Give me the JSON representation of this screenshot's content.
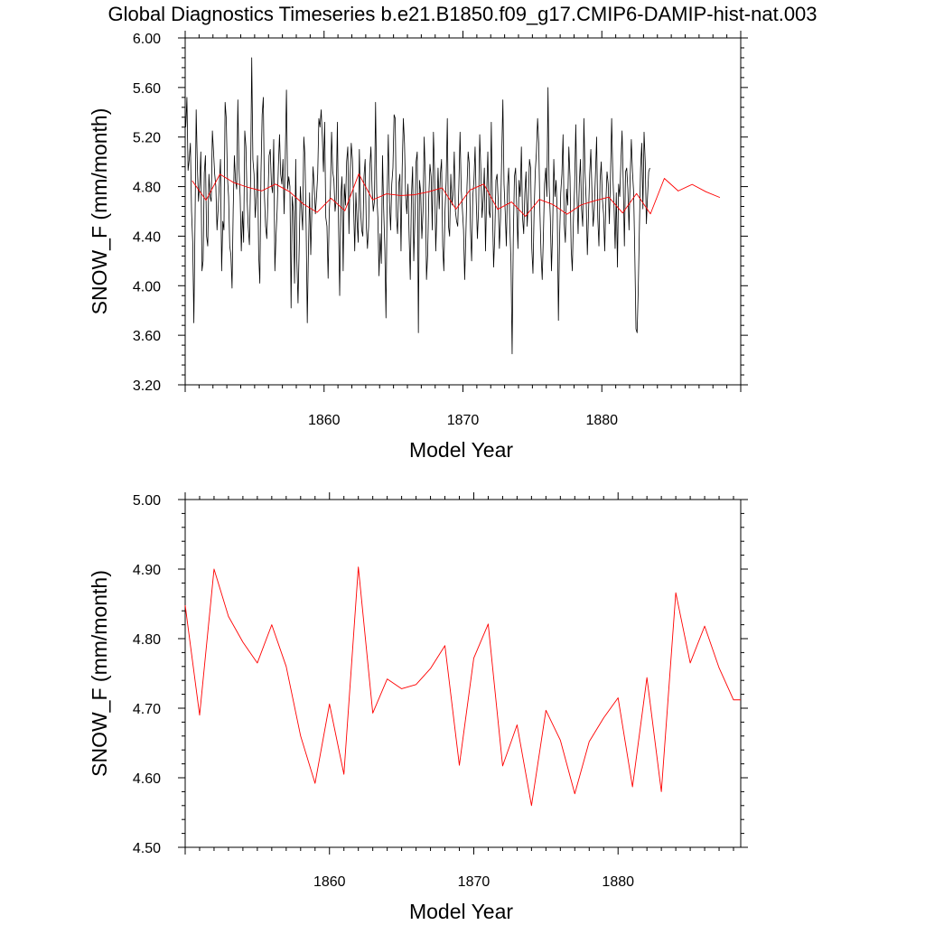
{
  "figure_title": "Global Diagnostics Timeseries b.e21.B1850.f09_g17.CMIP6-DAMIP-hist-nat.003",
  "colors": {
    "monthly": "#000000",
    "annual": "#ff0000"
  },
  "chart_data": [
    {
      "type": "line",
      "title": "Global Diagnostics Timeseries b.e21.B1850.f09_g17.CMIP6-DAMIP-hist-nat.003",
      "xlabel": "Model Year",
      "ylabel": "SNOW_F (mm/month)",
      "xlim": [
        1850,
        1890
      ],
      "ylim": [
        3.2,
        6.0
      ],
      "xticks": [
        1860,
        1870,
        1880
      ],
      "xtick_labels": [
        "1860",
        "1870",
        "1880"
      ],
      "yticks": [
        3.2,
        3.6,
        4.0,
        4.4,
        4.8,
        5.2,
        5.6,
        6.0
      ],
      "ytick_labels": [
        "3.20",
        "3.60",
        "4.00",
        "4.40",
        "4.80",
        "5.20",
        "5.60",
        "6.00"
      ],
      "series": [
        {
          "color": "#000000",
          "x_start": 1850.0417,
          "x_step": 0.08333,
          "values": [
            5.28,
            5.52,
            4.93,
            5.02,
            5.15,
            4.6,
            4.35,
            3.7,
            4.5,
            5.42,
            4.98,
            4.68,
            4.82,
            5.08,
            4.12,
            4.2,
            4.91,
            5.05,
            4.4,
            4.32,
            4.9,
            4.72,
            4.68,
            5.25,
            5.08,
            4.9,
            4.8,
            4.45,
            4.62,
            4.82,
            5.02,
            4.12,
            4.52,
            4.45,
            5.48,
            5.35,
            4.88,
            4.72,
            4.32,
            4.25,
            3.98,
            4.62,
            5.05,
            4.85,
            4.78,
            5.5,
            4.95,
            4.72,
            4.28,
            4.6,
            4.35,
            5.25,
            5.12,
            4.7,
            4.47,
            4.33,
            4.85,
            5.84,
            5.02,
            4.9,
            4.55,
            4.72,
            5.05,
            4.25,
            4.02,
            4.91,
            5.38,
            5.52,
            4.72,
            4.48,
            4.38,
            4.7,
            5.05,
            5.1,
            4.82,
            4.75,
            5.18,
            4.12,
            4.4,
            4.62,
            4.96,
            5.22,
            4.9,
            4.82,
            5.02,
            4.58,
            5.04,
            5.58,
            4.78,
            4.88,
            4.8,
            3.82,
            4.72,
            4.6,
            4.02,
            5.02,
            4.2,
            3.86,
            4.3,
            4.8,
            4.62,
            4.45,
            5.2,
            5.05,
            4.48,
            3.7,
            4.28,
            4.75,
            4.25,
            4.62,
            4.96,
            4.8,
            4.58,
            4.72,
            4.9,
            5.35,
            5.28,
            5.42,
            5.2,
            4.92,
            5.32,
            4.55,
            4.48,
            4.06,
            4.6,
            4.78,
            5.24,
            4.92,
            4.85,
            4.6,
            4.7,
            5.32,
            4.5,
            3.92,
            4.72,
            4.88,
            4.12,
            4.82,
            4.65,
            5.0,
            5.12,
            4.42,
            4.88,
            5.15,
            5.02,
            4.65,
            4.28,
            4.75,
            4.52,
            4.35,
            5.1,
            4.62,
            4.45,
            4.4,
            4.88,
            5.02,
            4.48,
            4.3,
            4.48,
            4.95,
            5.12,
            4.78,
            4.6,
            4.68,
            5.48,
            4.75,
            4.55,
            4.08,
            4.42,
            4.18,
            5.05,
            4.62,
            4.3,
            3.74,
            4.72,
            5.22,
            4.68,
            4.45,
            4.82,
            4.95,
            5.38,
            5.35,
            4.56,
            4.42,
            4.82,
            4.9,
            4.28,
            4.95,
            5.35,
            5.15,
            4.72,
            4.58,
            4.82,
            4.4,
            4.05,
            4.72,
            4.96,
            4.2,
            4.55,
            5.0,
            5.08,
            3.62,
            4.85,
            4.75,
            4.38,
            4.6,
            5.2,
            4.88,
            4.05,
            4.25,
            4.72,
            4.98,
            4.88,
            4.45,
            5.24,
            4.92,
            4.28,
            4.58,
            4.95,
            4.62,
            4.9,
            5.02,
            4.32,
            4.12,
            4.6,
            4.85,
            5.35,
            4.48,
            4.4,
            4.9,
            4.65,
            4.75,
            5.08,
            4.6,
            4.52,
            4.48,
            4.82,
            5.24,
            4.78,
            4.62,
            4.45,
            4.05,
            4.4,
            4.8,
            5.08,
            4.98,
            4.46,
            4.2,
            4.72,
            4.85,
            5.12,
            4.68,
            4.38,
            4.62,
            5.22,
            4.92,
            4.55,
            4.7,
            4.95,
            4.28,
            4.75,
            5.08,
            4.6,
            4.55,
            5.32,
            4.62,
            4.15,
            4.4,
            4.85,
            4.9,
            4.68,
            4.3,
            4.55,
            5.05,
            5.5,
            4.82,
            4.6,
            4.32,
            4.8,
            4.95,
            4.48,
            4.2,
            3.45,
            4.38,
            4.88,
            4.95,
            4.62,
            4.3,
            4.85,
            4.72,
            5.12,
            4.55,
            4.42,
            4.75,
            4.92,
            4.48,
            4.7,
            5.02,
            4.95,
            4.3,
            4.1,
            4.6,
            4.92,
            5.08,
            5.35,
            5.15,
            4.6,
            4.25,
            4.05,
            4.4,
            4.82,
            4.95,
            4.72,
            5.6,
            4.8,
            4.55,
            4.12,
            4.45,
            5.02,
            4.72,
            4.85,
            4.58,
            3.72,
            4.38,
            4.75,
            4.9,
            5.22,
            4.5,
            4.35,
            4.78,
            4.65,
            5.12,
            4.88,
            4.3,
            4.12,
            4.55,
            4.8,
            5.3,
            4.75,
            4.42,
            4.82,
            5.02,
            4.62,
            4.48,
            5.35,
            4.92,
            4.68,
            4.25,
            4.58,
            4.9,
            5.1,
            4.75,
            4.48,
            4.62,
            4.9,
            5.2,
            4.55,
            4.32,
            4.85,
            5.0,
            4.7,
            4.58,
            4.28,
            4.68,
            4.92,
            4.82,
            4.5,
            4.88,
            5.35,
            4.9,
            4.65,
            4.3,
            4.75,
            4.15,
            4.82,
            4.72,
            5.0,
            5.25,
            4.85,
            4.32,
            4.92,
            4.95,
            4.78,
            4.45,
            4.88,
            5.18,
            4.92,
            4.75,
            4.25,
            3.65,
            3.62,
            3.98,
            4.48,
            4.95,
            5.15,
            4.62,
            5.24,
            5.0,
            4.5,
            4.72,
            4.92,
            4.95
          ]
        },
        {
          "color": "#ff0000",
          "x": [
            1850.5,
            1851.5,
            1852.5,
            1853.5,
            1854.5,
            1855.5,
            1856.5,
            1857.5,
            1858.5,
            1859.5,
            1860.5,
            1861.5,
            1862.5,
            1863.5,
            1864.5,
            1865.5,
            1866.5,
            1867.5,
            1868.5,
            1869.5,
            1870.5,
            1871.5,
            1872.5,
            1873.5,
            1874.5,
            1875.5,
            1876.5,
            1877.5,
            1878.5,
            1879.5,
            1880.5,
            1881.5,
            1882.5,
            1883.5,
            1884.5,
            1885.5,
            1886.5,
            1887.5,
            1888.5
          ],
          "values": [
            4.848,
            4.69,
            4.9,
            4.832,
            4.795,
            4.765,
            4.82,
            4.76,
            4.66,
            4.592,
            4.706,
            4.605,
            4.903,
            4.693,
            4.742,
            4.728,
            4.734,
            4.757,
            4.79,
            4.618,
            4.772,
            4.821,
            4.617,
            4.676,
            4.56,
            4.697,
            4.654,
            4.577,
            4.652,
            4.686,
            4.715,
            4.587,
            4.744,
            4.58,
            4.866,
            4.765,
            4.818,
            4.758,
            4.712
          ]
        }
      ]
    },
    {
      "type": "line",
      "title": "",
      "xlabel": "Model Year",
      "ylabel": "SNOW_F (mm/month)",
      "xlim": [
        1850,
        1888.5
      ],
      "ylim": [
        4.5,
        5.0
      ],
      "xticks": [
        1860,
        1870,
        1880
      ],
      "xtick_labels": [
        "1860",
        "1870",
        "1880"
      ],
      "yticks": [
        4.5,
        4.6,
        4.7,
        4.8,
        4.9,
        5.0
      ],
      "ytick_labels": [
        "4.50",
        "4.60",
        "4.70",
        "4.80",
        "4.90",
        "5.00"
      ],
      "series": [
        {
          "color": "#ff0000",
          "x": [
            1850.0,
            1851.0,
            1852.0,
            1853.0,
            1854.0,
            1855.0,
            1856.0,
            1857.0,
            1858.0,
            1859.0,
            1860.0,
            1861.0,
            1862.0,
            1863.0,
            1864.0,
            1865.0,
            1866.0,
            1867.0,
            1868.0,
            1869.0,
            1870.0,
            1871.0,
            1872.0,
            1873.0,
            1874.0,
            1875.0,
            1876.0,
            1877.0,
            1878.0,
            1879.0,
            1880.0,
            1881.0,
            1882.0,
            1883.0,
            1884.0,
            1885.0,
            1886.0,
            1887.0,
            1888.0,
            1888.5
          ],
          "values": [
            4.848,
            4.69,
            4.9,
            4.832,
            4.795,
            4.765,
            4.82,
            4.76,
            4.66,
            4.592,
            4.706,
            4.605,
            4.903,
            4.693,
            4.742,
            4.728,
            4.734,
            4.757,
            4.79,
            4.618,
            4.772,
            4.821,
            4.617,
            4.676,
            4.56,
            4.697,
            4.654,
            4.577,
            4.652,
            4.686,
            4.715,
            4.587,
            4.744,
            4.58,
            4.866,
            4.765,
            4.818,
            4.758,
            4.712,
            4.712
          ]
        }
      ]
    }
  ]
}
